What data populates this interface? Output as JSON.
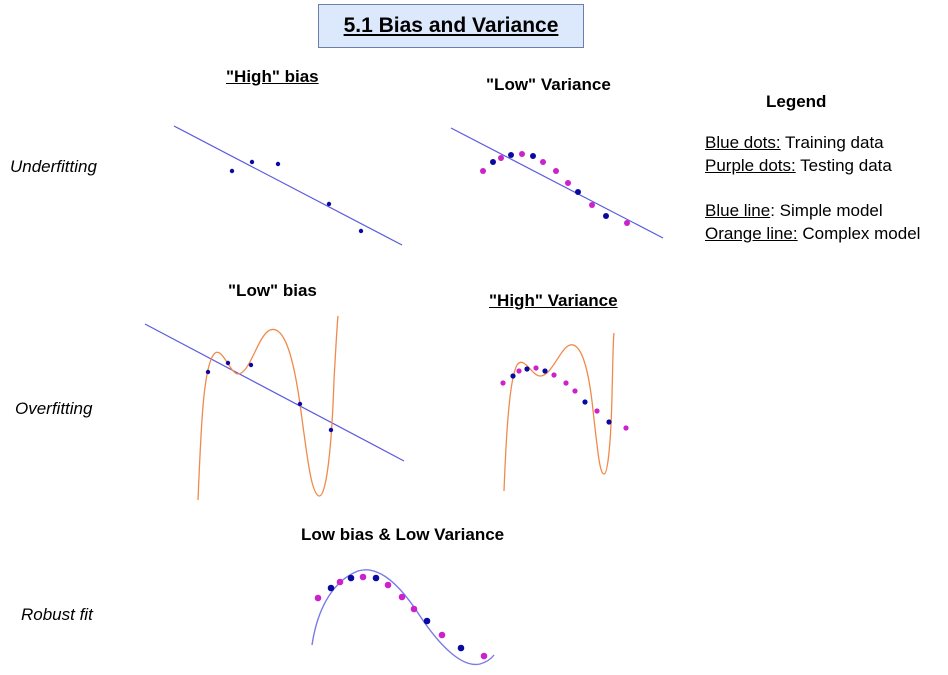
{
  "title": "5.1 Bias and Variance",
  "columns": {
    "high_bias": "\"High\" bias",
    "low_variance": "\"Low\" Variance",
    "low_bias": "\"Low\" bias",
    "high_variance": "\"High\" Variance",
    "robust": "Low bias & Low Variance"
  },
  "rows": {
    "underfitting": "Underfitting",
    "overfitting": "Overfitting",
    "robust_fit": "Robust fit"
  },
  "legend": {
    "title": "Legend",
    "items": [
      {
        "key": "Blue dots:",
        "text": " Training data"
      },
      {
        "key": "Purple dots:",
        "text": " Testing data"
      },
      {
        "key": "Blue line",
        "text": ": Simple model"
      },
      {
        "key": "Orange line:",
        "text": " Complex model"
      }
    ]
  },
  "colors": {
    "training_dot": "#0a0aa0",
    "testing_dot": "#cc22cc",
    "simple_line": "#5a5ae0",
    "complex_line": "#f08a4b",
    "robust_curve": "#7a7ae6",
    "title_bg": "#dce8fb"
  }
}
